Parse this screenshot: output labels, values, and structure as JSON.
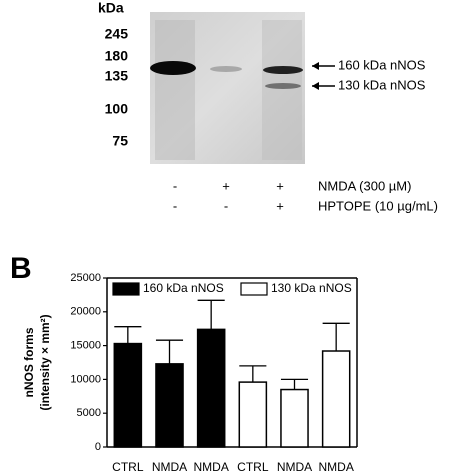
{
  "blot": {
    "unit": "kDa",
    "markers": [
      "245",
      "180",
      "135",
      "100",
      "75"
    ],
    "bands": [
      "160 kDa nNOS",
      "130 kDa nNOS"
    ],
    "treatments": [
      {
        "label": "NMDA (300 µM)",
        "signs": [
          "-",
          "+",
          "+"
        ]
      },
      {
        "label": "HPTOPE (10 µg/mL)",
        "signs": [
          "-",
          "-",
          "+"
        ]
      }
    ]
  },
  "panel_label": "B",
  "chart_data": {
    "type": "bar",
    "ylabel": [
      "nNOS forms",
      "(intensity × mm²)"
    ],
    "categories": [
      "CTRL",
      "NMDA",
      "NMDA",
      "CTRL",
      "NMDA",
      "NMDA"
    ],
    "series": [
      {
        "name": "160 kDa nNOS",
        "color": "#000000",
        "values": [
          15300,
          12300,
          17400,
          null,
          null,
          null
        ],
        "errors": [
          2500,
          3500,
          4300,
          null,
          null,
          null
        ]
      },
      {
        "name": "130 kDa nNOS",
        "color": "#ffffff",
        "values": [
          null,
          null,
          null,
          9600,
          8500,
          14200
        ],
        "errors": [
          null,
          null,
          null,
          2400,
          1500,
          4100
        ]
      }
    ],
    "ylim": [
      0,
      25000
    ],
    "yticks": [
      0,
      5000,
      10000,
      15000,
      20000,
      25000
    ],
    "legend": "top"
  }
}
